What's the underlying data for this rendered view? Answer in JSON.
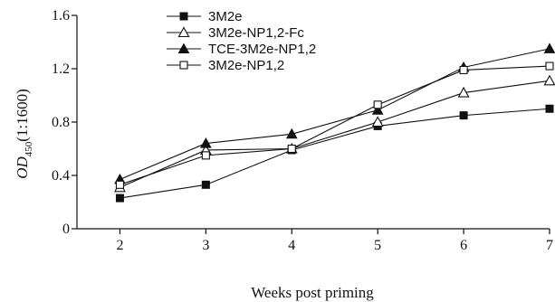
{
  "chart_data": {
    "type": "line",
    "xlabel": "Weeks post priming",
    "ylabel": {
      "italic": "OD",
      "subscript": "450",
      "suffix": "(1:1600)"
    },
    "xlim": [
      1.5,
      7
    ],
    "ylim": [
      0,
      1.6
    ],
    "xticks": [
      "2",
      "3",
      "4",
      "5",
      "6",
      "7"
    ],
    "yticks": [
      "0",
      "0.4",
      "0.8",
      "1.2",
      "1.6"
    ],
    "x": [
      2,
      3,
      4,
      5,
      6,
      7
    ],
    "grid": false,
    "legend_position": "top-left",
    "series": [
      {
        "name": "3M2e",
        "marker": "square-filled",
        "values": [
          0.23,
          0.33,
          0.59,
          0.77,
          0.85,
          0.9
        ]
      },
      {
        "name": "3M2e-NP1,2-Fc",
        "marker": "triangle-open",
        "values": [
          0.31,
          0.59,
          0.6,
          0.8,
          1.02,
          1.11
        ]
      },
      {
        "name": "TCE-3M2e-NP1,2",
        "marker": "triangle-filled",
        "values": [
          0.37,
          0.64,
          0.71,
          0.89,
          1.21,
          1.35
        ]
      },
      {
        "name": "3M2e-NP1,2",
        "marker": "square-open",
        "values": [
          0.33,
          0.55,
          0.6,
          0.93,
          1.19,
          1.22
        ]
      }
    ]
  }
}
